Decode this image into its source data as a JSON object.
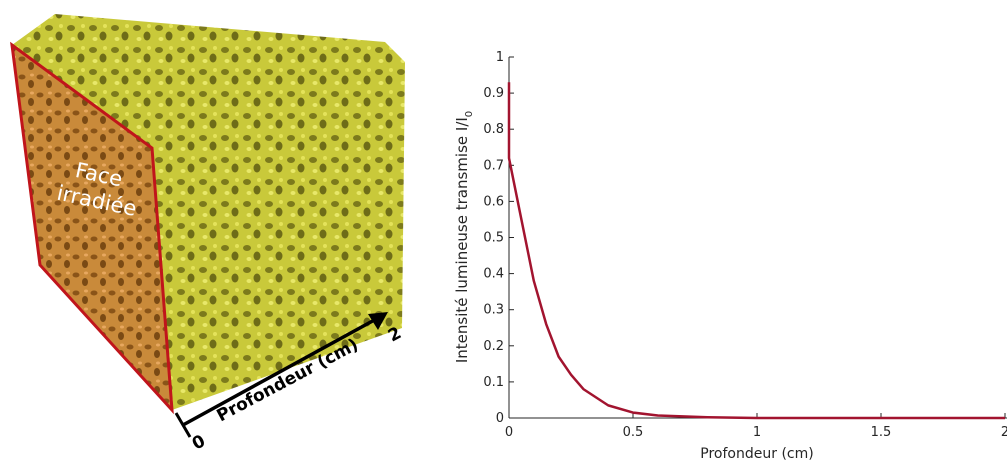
{
  "illustration": {
    "face_label": [
      "Face",
      "irradiée"
    ],
    "axis_label": "Profondeur (cm)",
    "axis_start": 0,
    "axis_end": 2
  },
  "chart_data": {
    "type": "line",
    "x": [
      0,
      0,
      0.05,
      0.1,
      0.15,
      0.2,
      0.25,
      0.3,
      0.4,
      0.5,
      0.6,
      0.8,
      1,
      1.5,
      2
    ],
    "values": [
      0.93,
      0.72,
      0.55,
      0.38,
      0.26,
      0.17,
      0.12,
      0.08,
      0.035,
      0.015,
      0.007,
      0.002,
      0,
      0,
      0
    ],
    "color": "#a2142f",
    "x_label": "Profondeur (cm)",
    "y_label": {
      "text": "Intensité lumineuse transmise I/I",
      "subscript": "0"
    },
    "xlim": [
      0,
      2
    ],
    "xticks": [
      0,
      0.5,
      1,
      1.5,
      2
    ],
    "ylim": [
      0,
      1
    ],
    "yticks": [
      0,
      0.1,
      0.2,
      0.3,
      0.4,
      0.5,
      0.6,
      0.7,
      0.8,
      0.9,
      1
    ],
    "grid": false
  }
}
